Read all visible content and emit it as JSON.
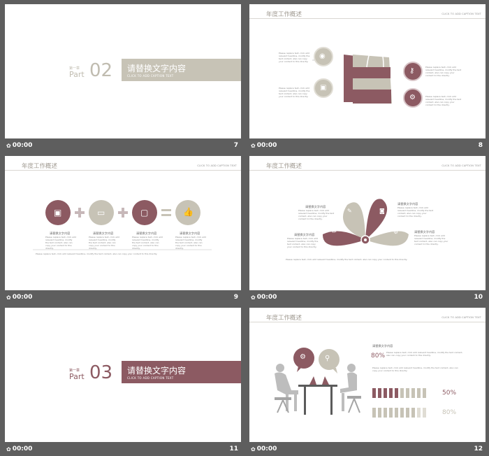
{
  "colors": {
    "maroon": "#8c5a62",
    "beige": "#c7c3b6",
    "grey": "#a8a8a8",
    "bg": "#5e5e5e"
  },
  "common": {
    "time": "00:00",
    "header": "年度工作概述",
    "header_sub": "CLICK TO ADD CAPTION TEXT",
    "body_text": "Please replace text, click add relevant headline, modify the text content, also can copy your content to this directly.",
    "tile_label": "请替换文字内容"
  },
  "slides": [
    {
      "num": "7",
      "chapter": "第一章",
      "part": "Part",
      "part_no": "02",
      "title": "请替换文字内容",
      "subtitle": "CLICK TO ADD CAPTION TEXT"
    },
    {
      "num": "8"
    },
    {
      "num": "9"
    },
    {
      "num": "10"
    },
    {
      "num": "11",
      "chapter": "第一章",
      "part": "Part",
      "part_no": "03",
      "title": "请替换文字内容",
      "subtitle": "CLICK TO ADD CAPTION TEXT"
    },
    {
      "num": "12",
      "pct_a": "80%",
      "pct_b": "50%",
      "pct_c": "80%"
    }
  ]
}
